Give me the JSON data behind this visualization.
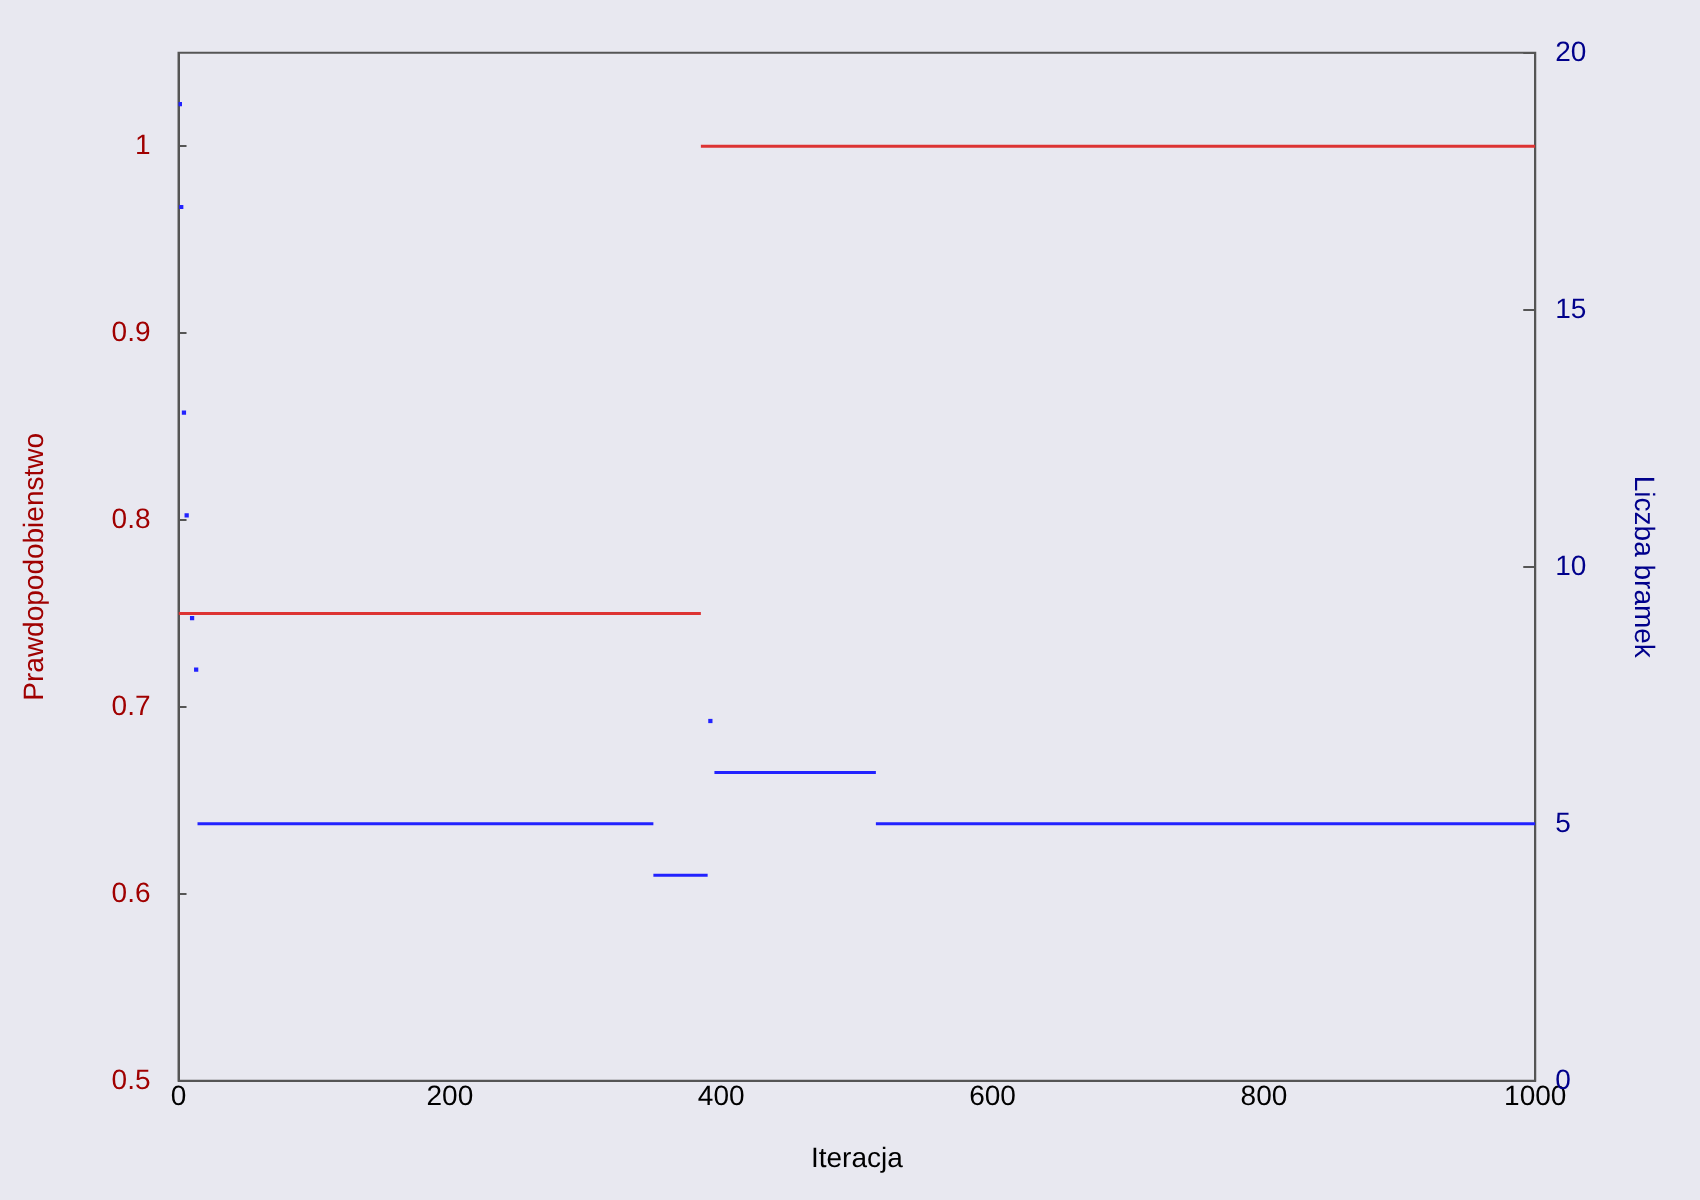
{
  "chart_data": {
    "type": "line",
    "xlabel": "Iteracja",
    "ylabel": "Prawdopodobienstwo",
    "y2label": "Liczba bramek",
    "xlim": [
      0,
      1000
    ],
    "xticks": [
      0,
      200,
      400,
      600,
      800,
      1000
    ],
    "ylim": [
      0.5,
      1.05
    ],
    "yticks": [
      0.5,
      0.6,
      0.7,
      0.8,
      0.9,
      1
    ],
    "y2lim": [
      0,
      20
    ],
    "y2ticks": [
      0,
      5,
      10,
      15,
      20
    ],
    "grid": false,
    "legend": false,
    "line_style": "solid",
    "series": [
      {
        "color": "#dd3333",
        "axis": "y",
        "x": [
          0,
          385
        ],
        "values": [
          0.75,
          0.75
        ]
      },
      {
        "color": "#dd3333",
        "axis": "y",
        "x": [
          385,
          1000
        ],
        "values": [
          1,
          1
        ]
      },
      {
        "color": "#2222ff",
        "axis": "y2",
        "x": [
          14,
          350
        ],
        "values": [
          5,
          5
        ]
      },
      {
        "color": "#2222ff",
        "axis": "y2",
        "x": [
          350,
          390
        ],
        "values": [
          4,
          4
        ]
      },
      {
        "color": "#2222ff",
        "axis": "y2",
        "x": [
          395,
          514
        ],
        "values": [
          6,
          6
        ]
      },
      {
        "color": "#2222ff",
        "axis": "y2",
        "x": [
          514,
          1000
        ],
        "values": [
          5,
          5
        ]
      },
      {
        "type": "scatter",
        "color": "#2222ff",
        "axis": "y2",
        "marker": "square",
        "x": [
          1,
          2,
          4,
          6,
          10,
          13,
          392
        ],
        "values": [
          19,
          17,
          13,
          11,
          9,
          8,
          7
        ]
      }
    ]
  }
}
